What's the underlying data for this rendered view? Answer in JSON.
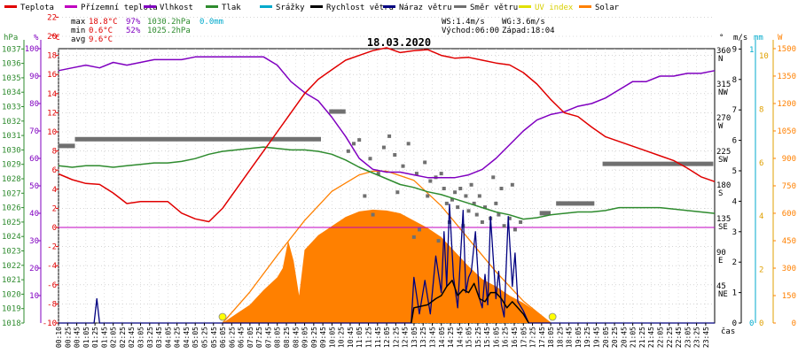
{
  "chart_data": {
    "type": "line",
    "title": "18.03.2020",
    "legend": [
      {
        "label": "Teplota",
        "color": "#e00000"
      },
      {
        "label": "Přízemní teplota",
        "color": "#c000c0"
      },
      {
        "label": "Vlhkost",
        "color": "#8000c0"
      },
      {
        "label": "Tlak",
        "color": "#2e8b2e"
      },
      {
        "label": "Srážky",
        "color": "#00aacc"
      },
      {
        "label": "Rychlost větru",
        "color": "#000000"
      },
      {
        "label": "Náraz větru",
        "color": "#000080"
      },
      {
        "label": "Směr větru",
        "color": "#707070"
      },
      {
        "label": "UV index",
        "color": "#e0e000"
      },
      {
        "label": "Solar",
        "color": "#ff8000"
      }
    ],
    "stats": {
      "max": {
        "label": "max",
        "temp": "18.8°C",
        "hum": "97%",
        "press": "1030.2hPa",
        "rain": "0.0mm"
      },
      "min": {
        "label": "min",
        "temp": "0.6°C",
        "hum": "52%",
        "press": "1025.2hPa"
      },
      "avg": {
        "label": "avg",
        "temp": "9.6°C"
      }
    },
    "wind_info": {
      "ws": "WS:1.4m/s",
      "wg": "WG:3.6m/s",
      "sunrise": "Východ:06:00",
      "sunset": "Západ:18:04"
    },
    "axes": {
      "hpa": {
        "unit": "hPa",
        "color": "#2e8b2e",
        "min": 1018,
        "max": 1037,
        "ticks": [
          "1037",
          "1036",
          "1035",
          "1034",
          "1033",
          "1032",
          "1031",
          "1030",
          "1029",
          "1028",
          "1027",
          "1026",
          "1025",
          "1024",
          "1023",
          "1022",
          "1021",
          "1020",
          "1019",
          "1018"
        ]
      },
      "pct": {
        "unit": "%",
        "color": "#8000c0",
        "min": 0,
        "max": 100,
        "ticks": [
          "100",
          "90",
          "80",
          "70",
          "60",
          "50",
          "40",
          "30",
          "20",
          "10"
        ]
      },
      "degc": {
        "unit": "°C",
        "color": "#e00000",
        "min": -10,
        "max": 24,
        "ticks": [
          "22",
          "20",
          "18",
          "16",
          "14",
          "12",
          "10",
          "8",
          "6",
          "4",
          "2",
          "0",
          "-2",
          "-4",
          "-6",
          "-8",
          "-10"
        ]
      },
      "dir": {
        "unit": "°",
        "color": "#000000",
        "ticks": [
          {
            "deg": "360",
            "card": "N"
          },
          {
            "deg": "315",
            "card": "NW"
          },
          {
            "deg": "270",
            "card": "W"
          },
          {
            "deg": "225",
            "card": "SW"
          },
          {
            "deg": "180",
            "card": "S"
          },
          {
            "deg": "135",
            "card": "SE"
          },
          {
            "deg": "90",
            "card": "E"
          },
          {
            "deg": "45",
            "card": "NE"
          }
        ]
      },
      "ms": {
        "unit": "m/s",
        "color": "#000000",
        "ticks": [
          "9",
          "8",
          "7",
          "6",
          "5",
          "4",
          "3",
          "2",
          "1",
          "0"
        ]
      },
      "mm": {
        "unit": "mm",
        "color": "#00aacc",
        "ticks": [
          "1",
          "0"
        ]
      },
      "uv": {
        "unit": "",
        "color": "#e0a000",
        "ticks": [
          "10",
          "8",
          "6",
          "4",
          "2",
          "0"
        ]
      },
      "w": {
        "unit": "W",
        "color": "#ff8000",
        "ticks": [
          "1500",
          "1350",
          "1200",
          "1050",
          "900",
          "750",
          "600",
          "450",
          "300",
          "150",
          "0"
        ]
      },
      "x": {
        "label": "čas",
        "ticks": [
          "00:10",
          "00:25",
          "00:45",
          "01:05",
          "01:25",
          "01:45",
          "02:05",
          "02:25",
          "02:45",
          "03:05",
          "03:25",
          "03:45",
          "04:05",
          "04:25",
          "04:45",
          "05:05",
          "05:25",
          "05:45",
          "06:05",
          "06:25",
          "06:45",
          "07:05",
          "07:25",
          "07:45",
          "08:05",
          "08:25",
          "08:45",
          "09:05",
          "09:25",
          "09:45",
          "10:05",
          "10:25",
          "10:45",
          "11:05",
          "11:25",
          "11:45",
          "12:05",
          "12:25",
          "12:45",
          "13:05",
          "13:25",
          "13:45",
          "14:05",
          "14:25",
          "14:45",
          "15:05",
          "15:25",
          "15:45",
          "16:05",
          "16:25",
          "16:45",
          "17:05",
          "17:25",
          "17:45",
          "18:05",
          "18:25",
          "18:45",
          "19:05",
          "19:25",
          "19:45",
          "20:05",
          "20:25",
          "20:45",
          "21:05",
          "21:25",
          "21:45",
          "22:05",
          "22:25",
          "22:45",
          "23:05",
          "23:25",
          "23:45"
        ]
      }
    },
    "series": [
      {
        "name": "Teplota",
        "unit": "°C",
        "hours": [
          0,
          0.5,
          1,
          1.5,
          2,
          2.5,
          3,
          3.5,
          4,
          4.5,
          5,
          5.5,
          6,
          6.5,
          7,
          7.5,
          8,
          8.5,
          9,
          9.5,
          10,
          10.5,
          11,
          11.5,
          12,
          12.5,
          13,
          13.5,
          14,
          14.5,
          15,
          15.5,
          16,
          16.5,
          17,
          17.5,
          18,
          18.5,
          19,
          19.5,
          20,
          20.5,
          21,
          21.5,
          22,
          22.5,
          23,
          23.5,
          24
        ],
        "values": [
          5.6,
          5.0,
          4.6,
          4.5,
          3.6,
          2.5,
          2.7,
          2.7,
          2.7,
          1.5,
          0.9,
          0.6,
          2.0,
          4.0,
          6.0,
          8.0,
          10.0,
          12.0,
          14.0,
          15.5,
          16.5,
          17.5,
          18.0,
          18.5,
          18.8,
          18.3,
          18.5,
          18.6,
          18.0,
          17.7,
          17.8,
          17.5,
          17.2,
          17.0,
          16.2,
          15.0,
          13.4,
          12.0,
          11.6,
          10.5,
          9.5,
          9.0,
          8.5,
          8.0,
          7.5,
          7.0,
          6.2,
          5.3,
          4.8
        ]
      },
      {
        "name": "Vlhkost",
        "unit": "%",
        "hours": [
          0,
          0.5,
          1,
          1.5,
          2,
          2.5,
          3,
          3.5,
          4,
          4.5,
          5,
          5.5,
          6,
          6.5,
          7,
          7.5,
          8,
          8.5,
          9,
          9.5,
          10,
          10.5,
          11,
          11.5,
          12,
          12.5,
          13,
          13.5,
          14,
          14.5,
          15,
          15.5,
          16,
          16.5,
          17,
          17.5,
          18,
          18.5,
          19,
          19.5,
          20,
          20.5,
          21,
          21.5,
          22,
          22.5,
          23,
          23.5,
          24
        ],
        "values": [
          92,
          93,
          94,
          93,
          95,
          94,
          95,
          96,
          96,
          96,
          97,
          97,
          97,
          97,
          97,
          97,
          94,
          88,
          84,
          81,
          75,
          68,
          60,
          56,
          55,
          55,
          54,
          53,
          53,
          53,
          54,
          56,
          60,
          65,
          70,
          74,
          76,
          77,
          79,
          80,
          82,
          85,
          88,
          88,
          90,
          90,
          91,
          91,
          92
        ]
      },
      {
        "name": "Tlak",
        "unit": "hPa",
        "hours": [
          0,
          0.5,
          1,
          1.5,
          2,
          2.5,
          3,
          3.5,
          4,
          4.5,
          5,
          5.5,
          6,
          6.5,
          7,
          7.5,
          8,
          8.5,
          9,
          9.5,
          10,
          10.5,
          11,
          11.5,
          12,
          12.5,
          13,
          13.5,
          14,
          14.5,
          15,
          15.5,
          16,
          16.5,
          17,
          17.5,
          18,
          18.5,
          19,
          19.5,
          20,
          20.5,
          21,
          21.5,
          22,
          22.5,
          23,
          23.5,
          24
        ],
        "values": [
          1028.9,
          1028.8,
          1028.9,
          1028.9,
          1028.8,
          1028.9,
          1029.0,
          1029.1,
          1029.1,
          1029.2,
          1029.4,
          1029.7,
          1029.9,
          1030.0,
          1030.1,
          1030.2,
          1030.1,
          1030.0,
          1030.0,
          1029.9,
          1029.7,
          1029.3,
          1028.8,
          1028.4,
          1028.0,
          1027.6,
          1027.4,
          1027.1,
          1026.9,
          1026.6,
          1026.3,
          1026.0,
          1025.7,
          1025.5,
          1025.2,
          1025.3,
          1025.5,
          1025.6,
          1025.7,
          1025.7,
          1025.8,
          1026.0,
          1026.0,
          1026.0,
          1026.0,
          1025.9,
          1025.8,
          1025.7,
          1025.6
        ]
      },
      {
        "name": "Solar",
        "unit": "W",
        "hours": [
          6.0,
          6.5,
          7,
          7.5,
          8,
          8.2,
          8.4,
          8.6,
          8.8,
          9.0,
          9.5,
          10,
          10.5,
          11,
          11.5,
          12,
          12.5,
          13,
          13.5,
          14,
          14.5,
          15,
          15.5,
          16,
          16.5,
          17,
          17.5,
          18.0
        ],
        "values": [
          0,
          50,
          100,
          180,
          250,
          300,
          450,
          340,
          150,
          400,
          480,
          530,
          580,
          610,
          620,
          615,
          600,
          560,
          520,
          470,
          390,
          310,
          240,
          200,
          150,
          110,
          60,
          0
        ]
      },
      {
        "name": "Solar max",
        "unit": "W",
        "hours": [
          6.0,
          7,
          8,
          9,
          10,
          11,
          11.5,
          12,
          13,
          14,
          15,
          16,
          17,
          18.0
        ],
        "values": [
          0,
          170,
          370,
          560,
          720,
          810,
          830,
          830,
          780,
          640,
          460,
          280,
          120,
          0
        ]
      },
      {
        "name": "Náraz větru",
        "unit": "m/s",
        "hours": [
          0,
          1.3,
          1.4,
          1.5,
          1.6,
          12.9,
          13.0,
          13.2,
          13.4,
          13.6,
          13.8,
          14.0,
          14.1,
          14.2,
          14.3,
          14.45,
          14.6,
          14.8,
          14.9,
          15.0,
          15.1,
          15.25,
          15.4,
          15.5,
          15.6,
          15.7,
          15.8,
          16.0,
          16.1,
          16.2,
          16.3,
          16.45,
          16.6,
          16.7,
          16.8,
          17.0,
          17.2,
          17.4,
          17.6,
          17.8,
          24
        ],
        "values": [
          0,
          0,
          0.8,
          0,
          0,
          0,
          1.5,
          0.3,
          1.4,
          0.3,
          2.2,
          1.0,
          3.0,
          1.2,
          3.9,
          1.5,
          0.5,
          3.7,
          1.0,
          1.5,
          1.7,
          3.0,
          0.8,
          0.5,
          1.6,
          0.6,
          3.5,
          0.8,
          1.7,
          0.6,
          0.2,
          3.5,
          1.2,
          2.3,
          0.7,
          0.4,
          0,
          0,
          0,
          0,
          0
        ]
      },
      {
        "name": "Rychlost větru",
        "unit": "m/s",
        "hours": [
          12.9,
          13.0,
          13.5,
          13.8,
          14.0,
          14.2,
          14.4,
          14.6,
          14.8,
          15.0,
          15.2,
          15.4,
          15.6,
          15.8,
          16.0,
          16.2,
          16.4,
          16.6,
          16.8,
          17.0,
          17.2
        ],
        "values": [
          0,
          0.5,
          0.6,
          0.8,
          0.9,
          1.2,
          1.4,
          0.9,
          1.1,
          1.0,
          1.3,
          0.8,
          0.7,
          1.0,
          1.0,
          0.8,
          0.5,
          0.7,
          0.5,
          0.3,
          0
        ]
      }
    ],
    "wind_direction_bars": [
      {
        "from": 0.0,
        "to": 0.6,
        "deg": 237
      },
      {
        "from": 0.6,
        "to": 9.6,
        "deg": 246
      },
      {
        "from": 9.9,
        "to": 10.5,
        "deg": 283
      },
      {
        "from": 17.6,
        "to": 18.0,
        "deg": 147
      },
      {
        "from": 18.2,
        "to": 19.6,
        "deg": 160
      },
      {
        "from": 19.9,
        "to": 23.95,
        "deg": 213
      }
    ],
    "wind_direction_points": [
      {
        "h": 10.6,
        "deg": 230
      },
      {
        "h": 10.8,
        "deg": 240
      },
      {
        "h": 11.0,
        "deg": 245
      },
      {
        "h": 11.2,
        "deg": 170
      },
      {
        "h": 11.4,
        "deg": 220
      },
      {
        "h": 11.5,
        "deg": 145
      },
      {
        "h": 11.7,
        "deg": 200
      },
      {
        "h": 11.9,
        "deg": 235
      },
      {
        "h": 12.1,
        "deg": 250
      },
      {
        "h": 12.3,
        "deg": 225
      },
      {
        "h": 12.4,
        "deg": 175
      },
      {
        "h": 12.6,
        "deg": 210
      },
      {
        "h": 12.8,
        "deg": 240
      },
      {
        "h": 13.0,
        "deg": 115
      },
      {
        "h": 13.1,
        "deg": 200
      },
      {
        "h": 13.2,
        "deg": 125
      },
      {
        "h": 13.4,
        "deg": 215
      },
      {
        "h": 13.5,
        "deg": 170
      },
      {
        "h": 13.6,
        "deg": 190
      },
      {
        "h": 13.8,
        "deg": 195
      },
      {
        "h": 13.9,
        "deg": 110
      },
      {
        "h": 14.0,
        "deg": 200
      },
      {
        "h": 14.1,
        "deg": 180
      },
      {
        "h": 14.2,
        "deg": 160
      },
      {
        "h": 14.3,
        "deg": 135
      },
      {
        "h": 14.4,
        "deg": 165
      },
      {
        "h": 14.5,
        "deg": 175
      },
      {
        "h": 14.6,
        "deg": 155
      },
      {
        "h": 14.7,
        "deg": 180
      },
      {
        "h": 14.8,
        "deg": 130
      },
      {
        "h": 14.9,
        "deg": 170
      },
      {
        "h": 15.0,
        "deg": 150
      },
      {
        "h": 15.1,
        "deg": 185
      },
      {
        "h": 15.2,
        "deg": 160
      },
      {
        "h": 15.3,
        "deg": 145
      },
      {
        "h": 15.4,
        "deg": 170
      },
      {
        "h": 15.5,
        "deg": 135
      },
      {
        "h": 15.6,
        "deg": 155
      },
      {
        "h": 15.8,
        "deg": 140
      },
      {
        "h": 15.9,
        "deg": 195
      },
      {
        "h": 16.0,
        "deg": 160
      },
      {
        "h": 16.1,
        "deg": 145
      },
      {
        "h": 16.2,
        "deg": 180
      },
      {
        "h": 16.3,
        "deg": 130
      },
      {
        "h": 16.5,
        "deg": 140
      },
      {
        "h": 16.6,
        "deg": 185
      },
      {
        "h": 16.7,
        "deg": 125
      },
      {
        "h": 16.9,
        "deg": 135
      }
    ],
    "sun_markers": [
      {
        "h": 6.0
      },
      {
        "h": 18.07
      }
    ],
    "zero_line": 0,
    "grid": true
  }
}
